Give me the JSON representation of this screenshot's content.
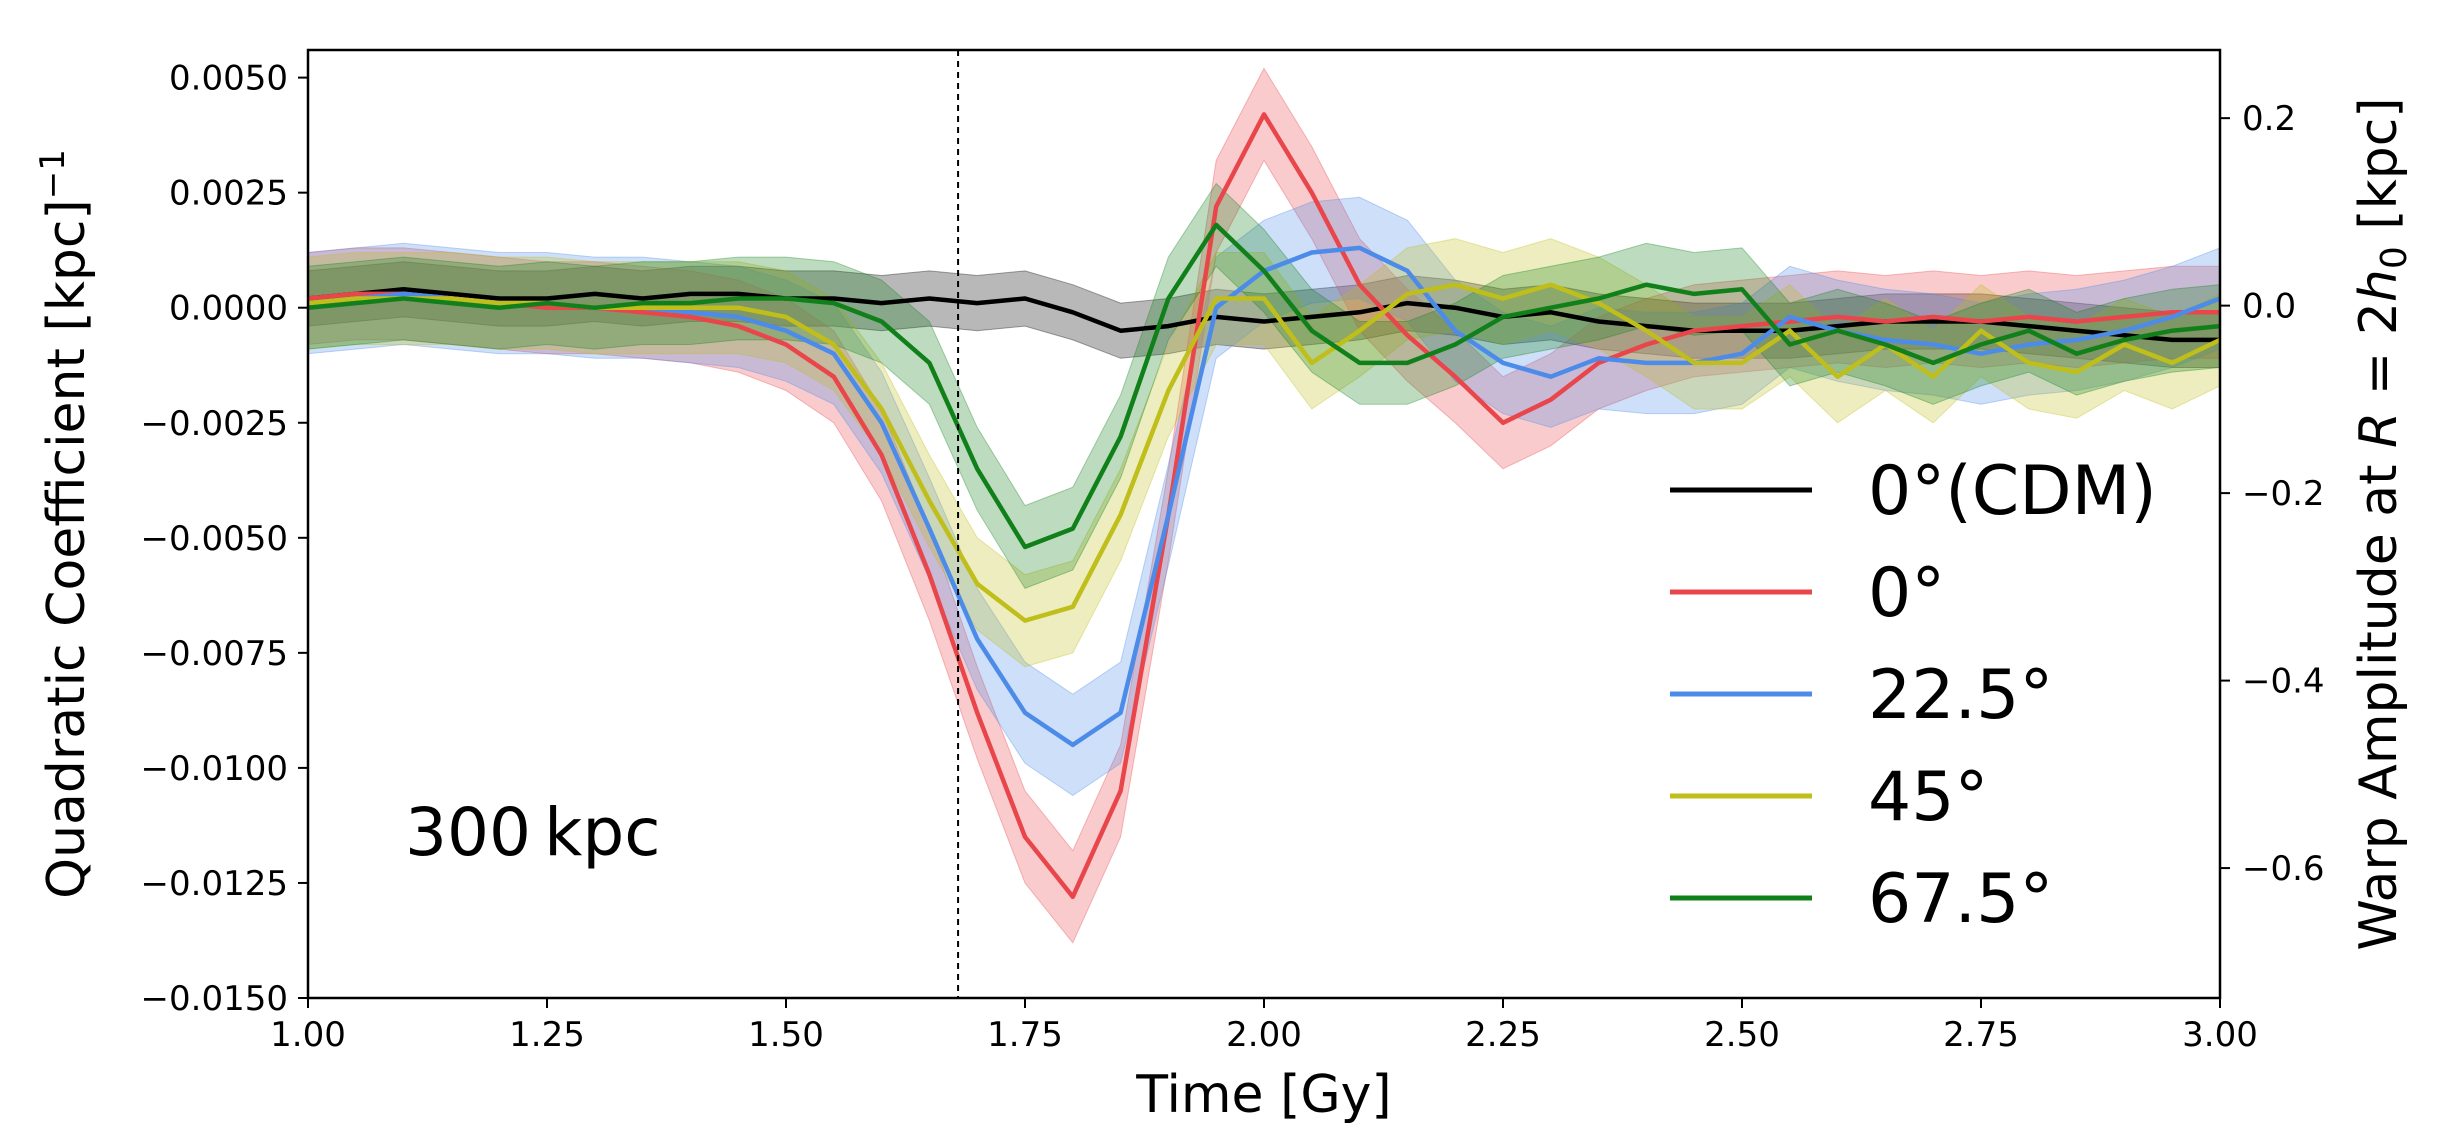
{
  "chart_data": {
    "type": "line",
    "title": "",
    "xlabel": "Time [Gy]",
    "ylabel": "Quadratic Coefficient [kpc]",
    "ylabel_exponent": "−1",
    "y2label_prefix": "Warp Amplitude at ",
    "y2label_var": "R",
    "y2label_mid": " = 2",
    "y2label_var2": "h",
    "y2label_sub": "0",
    "y2label_suffix": " [kpc]",
    "xlim": [
      1.0,
      3.0
    ],
    "ylim": [
      -0.015,
      0.0056
    ],
    "y2lim": [
      -0.7386,
      0.2727
    ],
    "xticks": [
      1.0,
      1.25,
      1.5,
      1.75,
      2.0,
      2.25,
      2.5,
      2.75,
      3.0
    ],
    "xtick_labels": [
      "1.00",
      "1.25",
      "1.50",
      "1.75",
      "2.00",
      "2.25",
      "2.50",
      "2.75",
      "3.00"
    ],
    "yticks": [
      0.005,
      0.0025,
      0.0,
      -0.0025,
      -0.005,
      -0.0075,
      -0.01,
      -0.0125,
      -0.015
    ],
    "ytick_labels": [
      "0.0050",
      "0.0025",
      "0.0000",
      "−0.0025",
      "−0.0050",
      "−0.0075",
      "−0.0100",
      "−0.0125",
      "−0.0150"
    ],
    "y2ticks": [
      0.2,
      0.0,
      -0.2,
      -0.4,
      -0.6
    ],
    "y2tick_labels": [
      "0.2",
      "0.0",
      "−0.2",
      "−0.4",
      "−0.6"
    ],
    "vline_x": 1.68,
    "annotation": "300 kpc",
    "legend_position": "right",
    "series": [
      {
        "name": "0°(CDM)",
        "color": "#000000",
        "x": [
          1.0,
          1.05,
          1.1,
          1.15,
          1.2,
          1.25,
          1.3,
          1.35,
          1.4,
          1.45,
          1.5,
          1.55,
          1.6,
          1.65,
          1.7,
          1.75,
          1.8,
          1.85,
          1.9,
          1.95,
          2.0,
          2.05,
          2.1,
          2.15,
          2.2,
          2.25,
          2.3,
          2.35,
          2.4,
          2.45,
          2.5,
          2.55,
          2.6,
          2.65,
          2.7,
          2.75,
          2.8,
          2.85,
          2.9,
          2.95,
          3.0
        ],
        "y": [
          0.0002,
          0.0003,
          0.0004,
          0.0003,
          0.0002,
          0.0002,
          0.0003,
          0.0002,
          0.0003,
          0.0003,
          0.0002,
          0.0002,
          0.0001,
          0.0002,
          0.0001,
          0.0002,
          -0.0001,
          -0.0005,
          -0.0004,
          -0.0002,
          -0.0003,
          -0.0002,
          -0.0001,
          0.0001,
          0.0,
          -0.0002,
          -0.0001,
          -0.0003,
          -0.0004,
          -0.0005,
          -0.0005,
          -0.0005,
          -0.0004,
          -0.0003,
          -0.0003,
          -0.0003,
          -0.0004,
          -0.0005,
          -0.0006,
          -0.0007,
          -0.0007
        ],
        "band": 0.0006
      },
      {
        "name": "0°",
        "color": "#e8464b",
        "x": [
          1.0,
          1.05,
          1.1,
          1.15,
          1.2,
          1.25,
          1.3,
          1.35,
          1.4,
          1.45,
          1.5,
          1.55,
          1.6,
          1.65,
          1.7,
          1.75,
          1.8,
          1.85,
          1.9,
          1.95,
          2.0,
          2.05,
          2.1,
          2.15,
          2.2,
          2.25,
          2.3,
          2.35,
          2.4,
          2.45,
          2.5,
          2.55,
          2.6,
          2.65,
          2.7,
          2.75,
          2.8,
          2.85,
          2.9,
          2.95,
          3.0
        ],
        "y": [
          0.0002,
          0.0003,
          0.0003,
          0.0002,
          0.0001,
          0.0,
          0.0,
          -0.0001,
          -0.0002,
          -0.0004,
          -0.0008,
          -0.0015,
          -0.0032,
          -0.0058,
          -0.0088,
          -0.0115,
          -0.0128,
          -0.0105,
          -0.0045,
          0.0022,
          0.0042,
          0.0025,
          0.0005,
          -0.0006,
          -0.0015,
          -0.0025,
          -0.002,
          -0.0012,
          -0.0008,
          -0.0005,
          -0.0004,
          -0.0003,
          -0.0002,
          -0.0003,
          -0.0002,
          -0.0003,
          -0.0002,
          -0.0003,
          -0.0002,
          -0.0001,
          -0.0001
        ],
        "band": 0.001
      },
      {
        "name": "22.5°",
        "color": "#4d8be8",
        "x": [
          1.0,
          1.05,
          1.1,
          1.15,
          1.2,
          1.25,
          1.3,
          1.35,
          1.4,
          1.45,
          1.5,
          1.55,
          1.6,
          1.65,
          1.7,
          1.75,
          1.8,
          1.85,
          1.9,
          1.95,
          2.0,
          2.05,
          2.1,
          2.15,
          2.2,
          2.25,
          2.3,
          2.35,
          2.4,
          2.45,
          2.5,
          2.55,
          2.6,
          2.65,
          2.7,
          2.75,
          2.8,
          2.85,
          2.9,
          2.95,
          3.0
        ],
        "y": [
          0.0001,
          0.0002,
          0.0003,
          0.0002,
          0.0001,
          0.0001,
          0.0,
          0.0,
          -0.0001,
          -0.0002,
          -0.0005,
          -0.001,
          -0.0025,
          -0.0048,
          -0.0072,
          -0.0088,
          -0.0095,
          -0.0088,
          -0.0045,
          0.0,
          0.0008,
          0.0012,
          0.0013,
          0.0008,
          -0.0005,
          -0.0012,
          -0.0015,
          -0.0011,
          -0.0012,
          -0.0012,
          -0.001,
          -0.0002,
          -0.0005,
          -0.0007,
          -0.0008,
          -0.001,
          -0.0008,
          -0.0007,
          -0.0005,
          -0.0002,
          0.0002
        ],
        "band": 0.0011
      },
      {
        "name": "45°",
        "color": "#bfbe1a",
        "x": [
          1.0,
          1.05,
          1.1,
          1.15,
          1.2,
          1.25,
          1.3,
          1.35,
          1.4,
          1.45,
          1.5,
          1.55,
          1.6,
          1.65,
          1.7,
          1.75,
          1.8,
          1.85,
          1.9,
          1.95,
          2.0,
          2.05,
          2.1,
          2.15,
          2.2,
          2.25,
          2.3,
          2.35,
          2.4,
          2.45,
          2.5,
          2.55,
          2.6,
          2.65,
          2.7,
          2.75,
          2.8,
          2.85,
          2.9,
          2.95,
          3.0
        ],
        "y": [
          0.0001,
          0.0002,
          0.0002,
          0.0002,
          0.0001,
          0.0001,
          0.0,
          0.0,
          0.0,
          0.0,
          -0.0002,
          -0.0008,
          -0.0022,
          -0.0042,
          -0.006,
          -0.0068,
          -0.0065,
          -0.0045,
          -0.0018,
          0.0002,
          0.0002,
          -0.0012,
          -0.0005,
          0.0003,
          0.0005,
          0.0002,
          0.0005,
          0.0001,
          -0.0005,
          -0.0012,
          -0.0012,
          -0.0005,
          -0.0015,
          -0.0008,
          -0.0015,
          -0.0005,
          -0.0012,
          -0.0014,
          -0.0008,
          -0.0012,
          -0.0007
        ],
        "band": 0.001
      },
      {
        "name": "67.5°",
        "color": "#11801a",
        "x": [
          1.0,
          1.05,
          1.1,
          1.15,
          1.2,
          1.25,
          1.3,
          1.35,
          1.4,
          1.45,
          1.5,
          1.55,
          1.6,
          1.65,
          1.7,
          1.75,
          1.8,
          1.85,
          1.9,
          1.95,
          2.0,
          2.05,
          2.1,
          2.15,
          2.2,
          2.25,
          2.3,
          2.35,
          2.4,
          2.45,
          2.5,
          2.55,
          2.6,
          2.65,
          2.7,
          2.75,
          2.8,
          2.85,
          2.9,
          2.95,
          3.0
        ],
        "y": [
          0.0,
          0.0001,
          0.0002,
          0.0001,
          0.0,
          0.0001,
          0.0,
          0.0001,
          0.0001,
          0.0002,
          0.0002,
          0.0001,
          -0.0003,
          -0.0012,
          -0.0035,
          -0.0052,
          -0.0048,
          -0.0028,
          0.0002,
          0.0018,
          0.0008,
          -0.0005,
          -0.0012,
          -0.0012,
          -0.0008,
          -0.0002,
          0.0,
          0.0002,
          0.0005,
          0.0003,
          0.0004,
          -0.0008,
          -0.0005,
          -0.0008,
          -0.0012,
          -0.0008,
          -0.0005,
          -0.001,
          -0.0007,
          -0.0005,
          -0.0004
        ],
        "band": 0.0009
      }
    ]
  }
}
